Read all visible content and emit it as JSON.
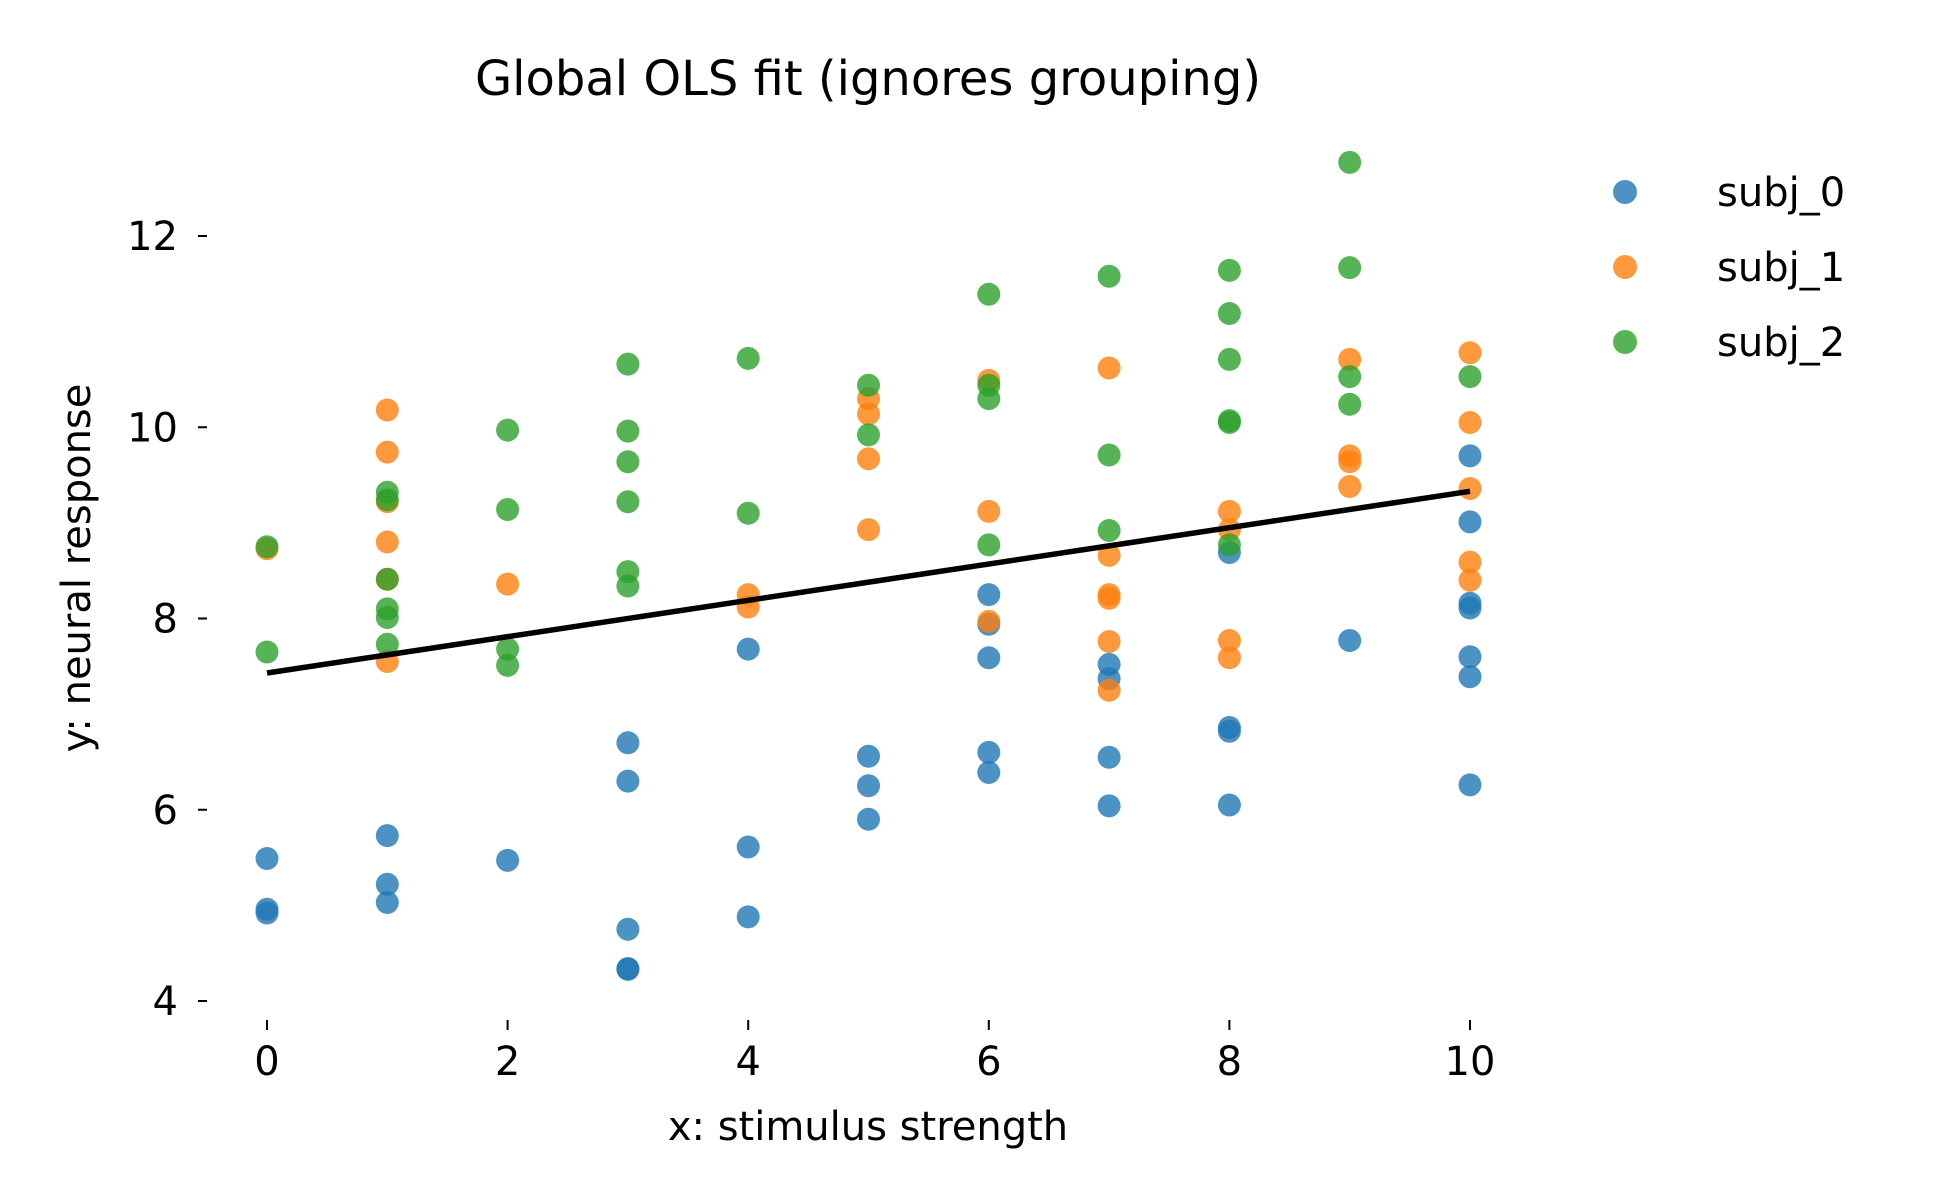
{
  "chart_data": {
    "type": "scatter",
    "title": "Global OLS fit (ignores grouping)",
    "xlabel": "x: stimulus strength",
    "ylabel": "y: neural response",
    "xlim": [
      -0.5,
      10.5
    ],
    "ylim": [
      4,
      12.9
    ],
    "xticks": [
      0,
      2,
      4,
      6,
      8,
      10
    ],
    "xtick_labels": [
      "0",
      "2",
      "4",
      "6",
      "8",
      "10"
    ],
    "yticks": [
      4,
      6,
      8,
      10,
      12
    ],
    "ytick_labels": [
      "4",
      "6",
      "8",
      "10",
      "12"
    ],
    "grid": false,
    "legend_position": "outside-top-right",
    "series": [
      {
        "name": "subj_0",
        "color": "#1f77b4",
        "points": [
          [
            0,
            5.49
          ],
          [
            0,
            4.96
          ],
          [
            0,
            4.92
          ],
          [
            1,
            5.73
          ],
          [
            1,
            5.22
          ],
          [
            1,
            5.03
          ],
          [
            2,
            5.47
          ],
          [
            3,
            6.7
          ],
          [
            3,
            6.3
          ],
          [
            3,
            4.75
          ],
          [
            3,
            4.34
          ],
          [
            3,
            4.33
          ],
          [
            4,
            7.68
          ],
          [
            4,
            5.61
          ],
          [
            4,
            4.88
          ],
          [
            5,
            6.56
          ],
          [
            5,
            6.25
          ],
          [
            5,
            5.9
          ],
          [
            6,
            8.25
          ],
          [
            6,
            7.94
          ],
          [
            6,
            7.59
          ],
          [
            6,
            6.6
          ],
          [
            6,
            6.39
          ],
          [
            7,
            7.52
          ],
          [
            7,
            7.37
          ],
          [
            7,
            6.55
          ],
          [
            7,
            6.04
          ],
          [
            8,
            8.69
          ],
          [
            8,
            6.86
          ],
          [
            8,
            6.82
          ],
          [
            8,
            6.05
          ],
          [
            9,
            7.77
          ],
          [
            10,
            9.7
          ],
          [
            10,
            9.01
          ],
          [
            10,
            8.16
          ],
          [
            10,
            8.11
          ],
          [
            10,
            7.6
          ],
          [
            10,
            7.39
          ],
          [
            10,
            6.26
          ]
        ]
      },
      {
        "name": "subj_1",
        "color": "#ff7f0e",
        "points": [
          [
            0,
            8.73
          ],
          [
            1,
            10.18
          ],
          [
            1,
            9.74
          ],
          [
            1,
            9.22
          ],
          [
            1,
            8.8
          ],
          [
            1,
            8.41
          ],
          [
            1,
            7.55
          ],
          [
            2,
            8.36
          ],
          [
            4,
            8.25
          ],
          [
            4,
            8.12
          ],
          [
            5,
            10.3
          ],
          [
            5,
            10.14
          ],
          [
            5,
            9.67
          ],
          [
            5,
            8.93
          ],
          [
            6,
            10.49
          ],
          [
            6,
            9.12
          ],
          [
            6,
            7.97
          ],
          [
            7,
            10.62
          ],
          [
            7,
            8.66
          ],
          [
            7,
            8.25
          ],
          [
            7,
            8.21
          ],
          [
            7,
            7.76
          ],
          [
            7,
            7.25
          ],
          [
            8,
            9.12
          ],
          [
            8,
            8.93
          ],
          [
            8,
            7.77
          ],
          [
            8,
            7.59
          ],
          [
            9,
            10.71
          ],
          [
            9,
            9.7
          ],
          [
            9,
            9.64
          ],
          [
            9,
            9.38
          ],
          [
            10,
            10.78
          ],
          [
            10,
            10.05
          ],
          [
            10,
            9.36
          ],
          [
            10,
            8.59
          ],
          [
            10,
            8.4
          ]
        ]
      },
      {
        "name": "subj_2",
        "color": "#2ca02c",
        "points": [
          [
            0,
            8.75
          ],
          [
            0,
            7.65
          ],
          [
            1,
            9.32
          ],
          [
            1,
            9.24
          ],
          [
            1,
            8.41
          ],
          [
            1,
            8.1
          ],
          [
            1,
            8.01
          ],
          [
            1,
            7.73
          ],
          [
            2,
            9.97
          ],
          [
            2,
            9.14
          ],
          [
            2,
            7.68
          ],
          [
            2,
            7.51
          ],
          [
            3,
            10.66
          ],
          [
            3,
            9.96
          ],
          [
            3,
            9.64
          ],
          [
            3,
            9.22
          ],
          [
            3,
            8.49
          ],
          [
            3,
            8.34
          ],
          [
            4,
            10.72
          ],
          [
            4,
            9.1
          ],
          [
            5,
            10.44
          ],
          [
            5,
            9.92
          ],
          [
            6,
            11.39
          ],
          [
            6,
            10.44
          ],
          [
            6,
            10.3
          ],
          [
            6,
            8.77
          ],
          [
            7,
            11.58
          ],
          [
            7,
            9.71
          ],
          [
            7,
            8.92
          ],
          [
            8,
            11.64
          ],
          [
            8,
            11.19
          ],
          [
            8,
            10.71
          ],
          [
            8,
            10.07
          ],
          [
            8,
            10.05
          ],
          [
            8,
            8.77
          ],
          [
            9,
            12.77
          ],
          [
            9,
            11.67
          ],
          [
            9,
            10.53
          ],
          [
            9,
            10.24
          ],
          [
            10,
            10.53
          ]
        ]
      }
    ],
    "fit_line": {
      "name": "OLS fit",
      "color": "#000000",
      "x": [
        0,
        10
      ],
      "y": [
        7.43,
        9.33
      ]
    }
  }
}
